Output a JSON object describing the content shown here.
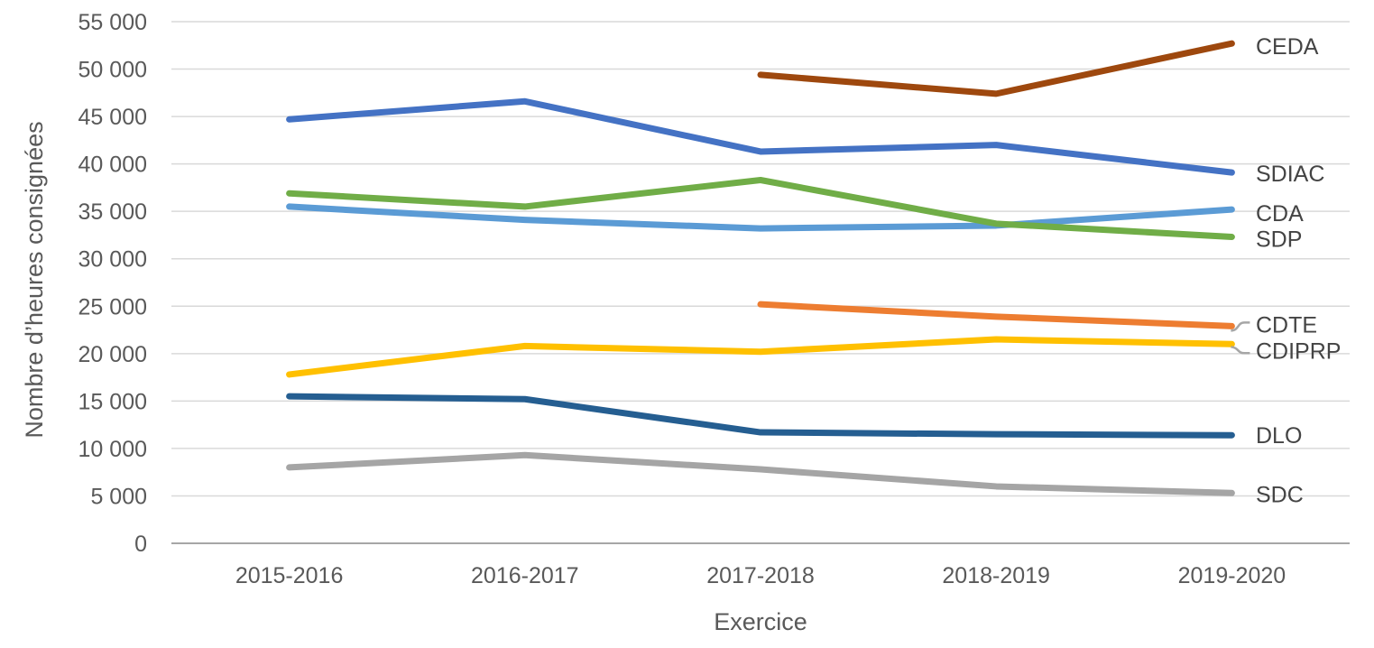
{
  "chart_data": {
    "type": "line",
    "title": "",
    "xlabel": "Exercice",
    "ylabel": "Nombre d’heures consignées",
    "categories": [
      "2015-2016",
      "2016-2017",
      "2017-2018",
      "2018-2019",
      "2019-2020"
    ],
    "ylim": [
      0,
      55000
    ],
    "y_tick_step": 5000,
    "y_ticks": [
      0,
      5000,
      10000,
      15000,
      20000,
      25000,
      30000,
      35000,
      40000,
      45000,
      50000,
      55000
    ],
    "y_tick_labels": [
      "0",
      "5 000",
      "10 000",
      "15 000",
      "20 000",
      "25 000",
      "30 000",
      "35 000",
      "40 000",
      "45 000",
      "50 000",
      "55 000"
    ],
    "grid": true,
    "legend_position": "labels-at-line-ends",
    "series": [
      {
        "name": "CEDA",
        "color": "#9E480E",
        "values": [
          null,
          null,
          49400,
          47400,
          52700
        ],
        "label_dy": 4,
        "leader": false
      },
      {
        "name": "SDIAC",
        "color": "#4472C4",
        "values": [
          44700,
          46600,
          41300,
          42000,
          39100
        ],
        "label_dy": 2,
        "leader": false
      },
      {
        "name": "CDA",
        "color": "#5B9BD5",
        "values": [
          35500,
          34100,
          33200,
          33500,
          35200
        ],
        "label_dy": 5,
        "leader": false
      },
      {
        "name": "SDP",
        "color": "#70AD47",
        "values": [
          36900,
          35500,
          38300,
          33700,
          32300
        ],
        "label_dy": 3,
        "leader": false
      },
      {
        "name": "CDTE",
        "color": "#ED7D31",
        "values": [
          null,
          null,
          25200,
          23900,
          22900
        ],
        "label_dy": -1,
        "leader": true,
        "leader_dir": "up"
      },
      {
        "name": "CDIPRP",
        "color": "#FFC000",
        "values": [
          17800,
          20800,
          20200,
          21500,
          21000
        ],
        "label_dy": 8,
        "leader": true,
        "leader_dir": "down"
      },
      {
        "name": "DLO",
        "color": "#255E91",
        "values": [
          15500,
          15200,
          11700,
          11500,
          11400
        ],
        "label_dy": 1,
        "leader": false
      },
      {
        "name": "SDC",
        "color": "#A5A5A5",
        "values": [
          8000,
          9300,
          7800,
          6000,
          5300
        ],
        "label_dy": 2,
        "leader": false
      }
    ]
  },
  "colors": {
    "grid": "#D9D9D9",
    "axis_line": "#A6A6A6",
    "axis_text": "#595959",
    "series_label_text": "#444444",
    "leader_line": "#A6A6A6",
    "background": "#FFFFFF"
  }
}
